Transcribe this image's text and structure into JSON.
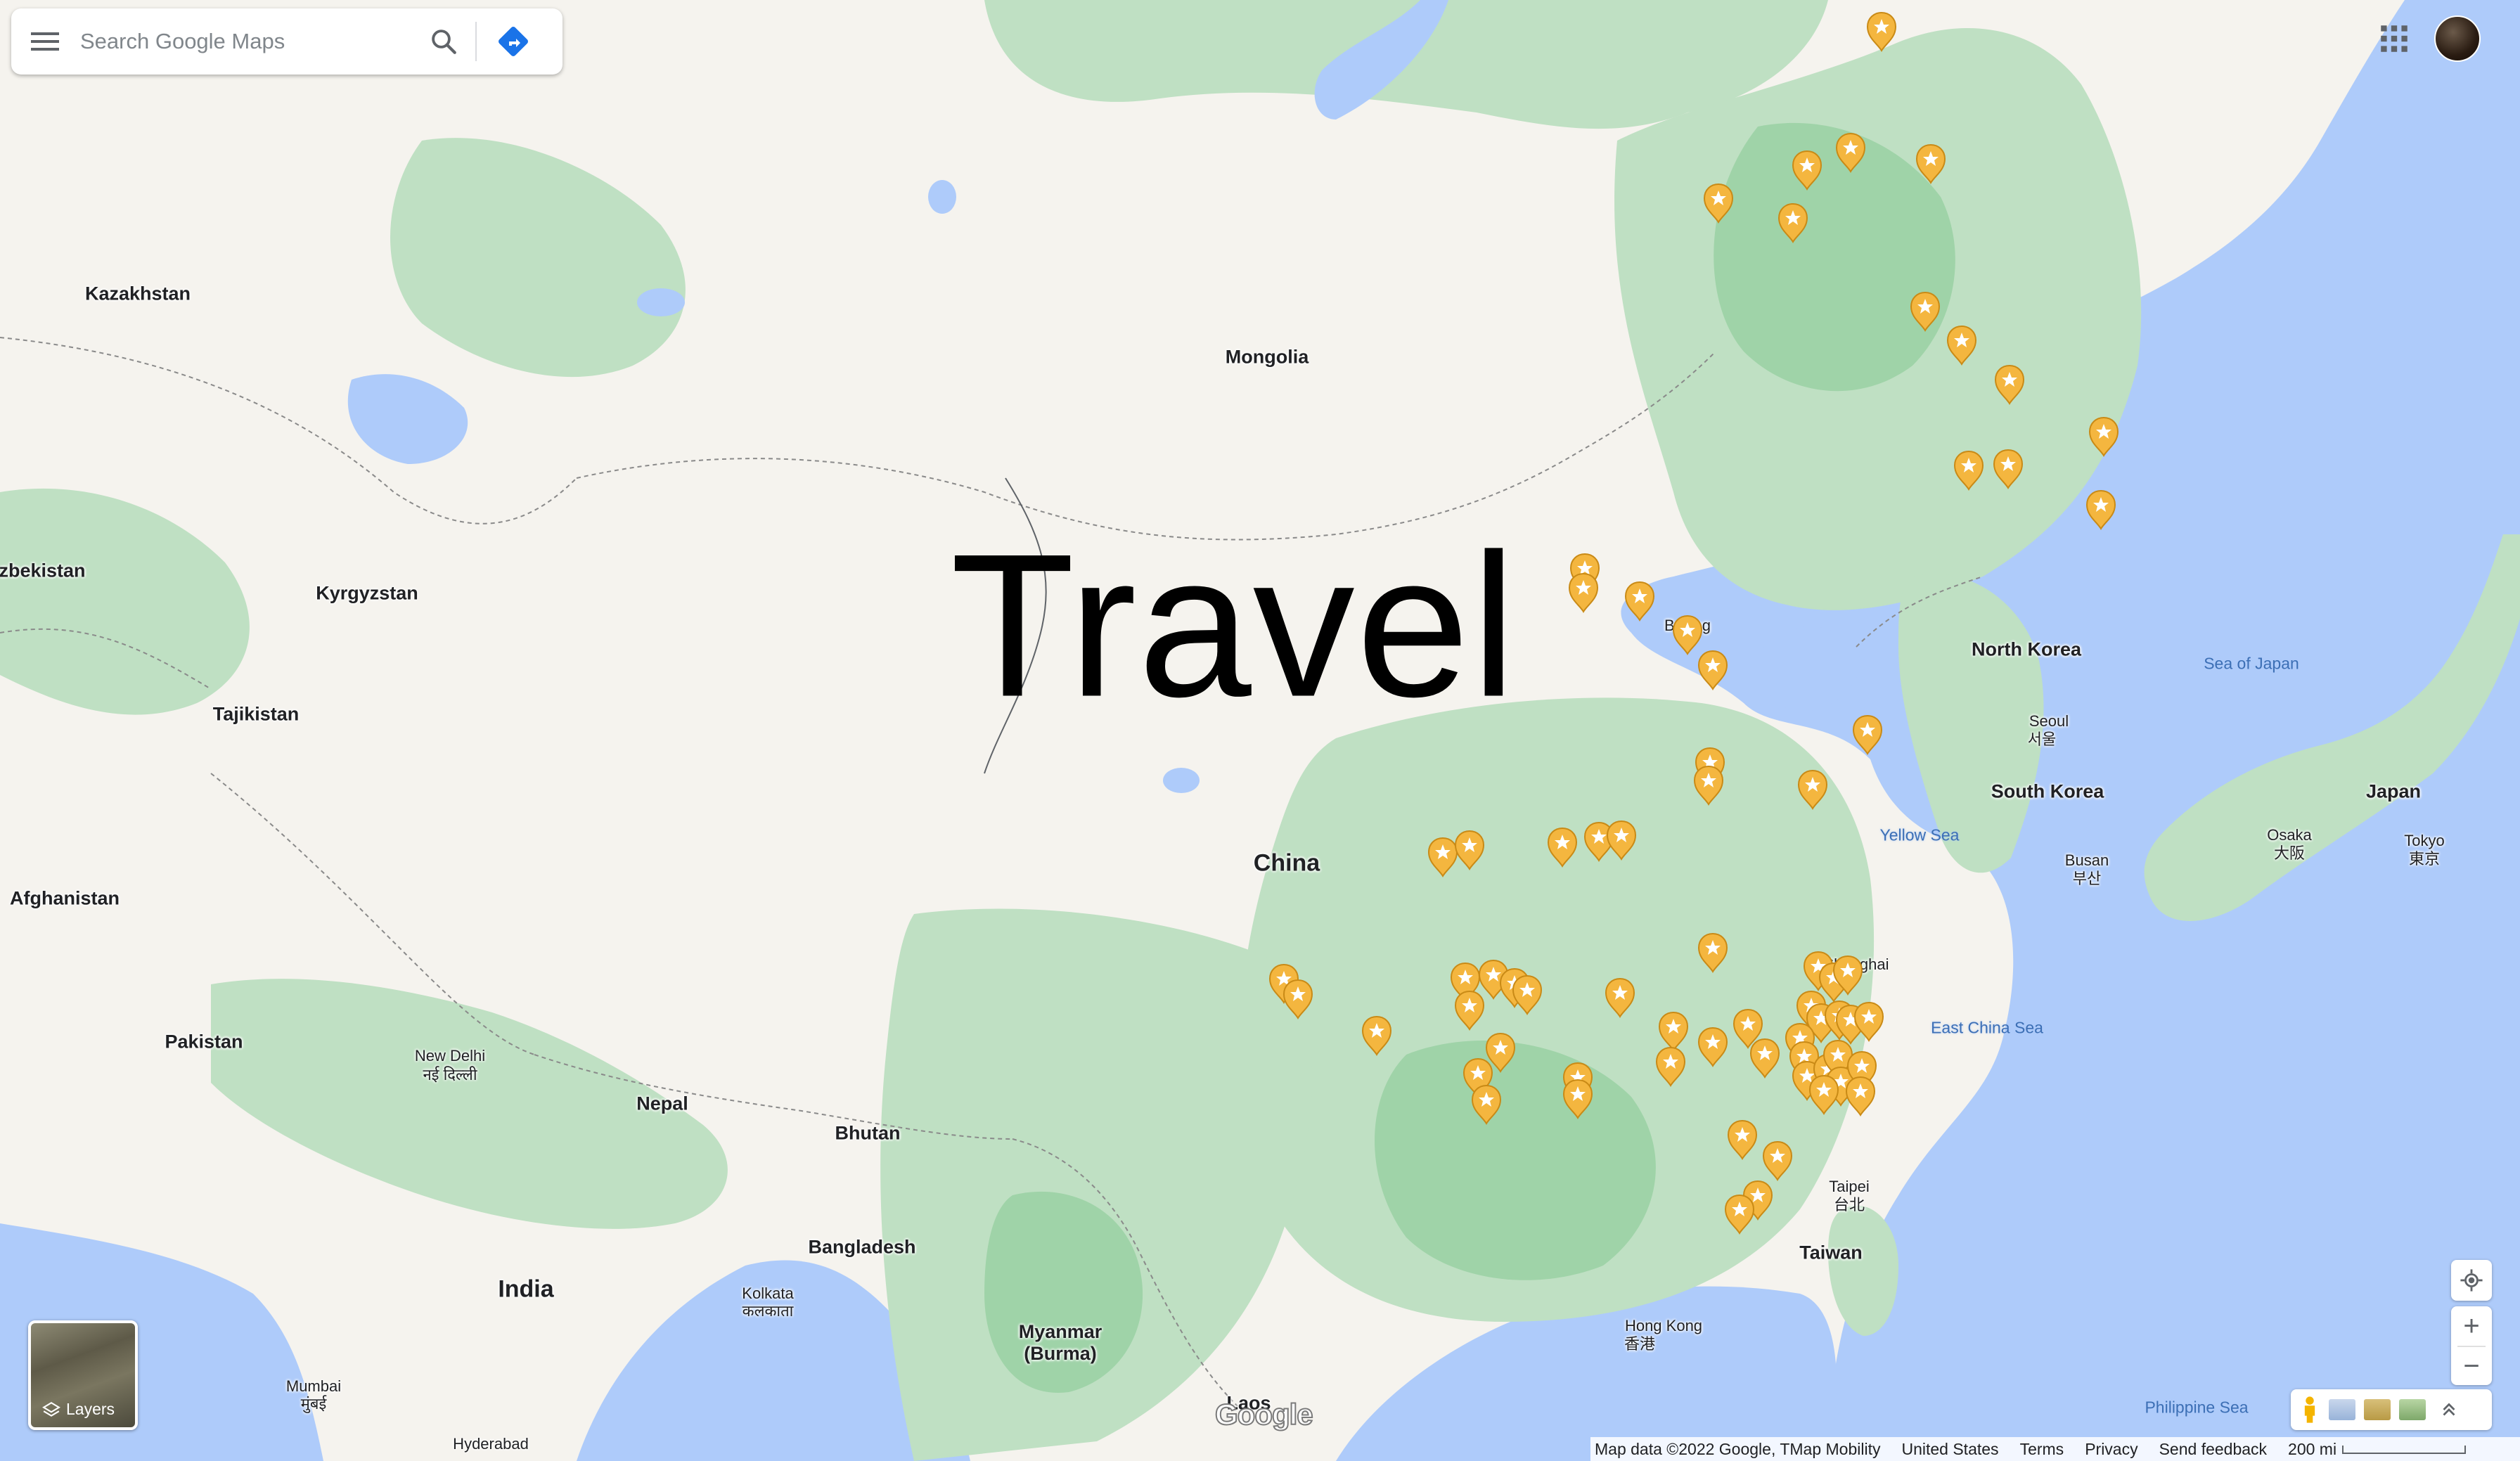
{
  "search": {
    "placeholder": "Search Google Maps"
  },
  "overlay_title": "Travel",
  "labels": {
    "countries": [
      "Kazakhstan",
      "Mongolia",
      "zbekistan",
      "Kyrgyzstan",
      "Tajikistan",
      "Afghanistan",
      "Pakistan",
      "Nepal",
      "Bhutan",
      "Bangladesh",
      "India",
      "Myanmar\n(Burma)",
      "Laos",
      "China",
      "North Korea",
      "South Korea",
      "Japan",
      "Taiwan"
    ],
    "seas": [
      "Sea of Japan",
      "Yellow Sea",
      "East China Sea",
      "Philippine Sea"
    ],
    "cities": [
      "New Delhi",
      "नई दिल्ली",
      "Kolkata",
      "कलकाता",
      "Mumbai",
      "मुंबई",
      "Hyderabad",
      "Beijing",
      "Shanghai",
      "Seoul",
      "서울",
      "Busan",
      "부산",
      "Osaka",
      "大阪",
      "Tokyo",
      "東京",
      "Taipei",
      "台北",
      "Hong Kong",
      "香港"
    ]
  },
  "controls": {
    "layers_label": "Layers",
    "zoom_in": "+",
    "zoom_out": "−"
  },
  "footer": {
    "map_data": "Map data ©2022 Google, TMap Mobility",
    "region": "United States",
    "terms": "Terms",
    "privacy": "Privacy",
    "feedback": "Send feedback",
    "scale": "200 mi"
  },
  "logo": "Google",
  "colors": {
    "water": "#aecbfa",
    "land": "#f5f3ee",
    "forest": "#bfe0c3",
    "forest_dark": "#9fd3a8",
    "pin": "#f4b63f",
    "route_blue": "#1a73e8"
  },
  "pins_count_visible": 72
}
